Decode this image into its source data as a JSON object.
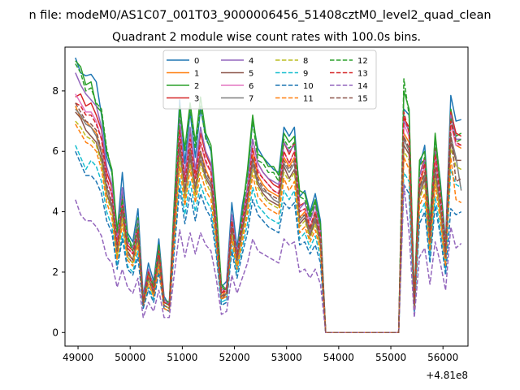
{
  "chart_data": {
    "type": "line",
    "suptitle": "n file: modeM0/AS1C07_001T03_9000006456_51408cztM0_level2_quad_clean",
    "title": "Quadrant 2 module wise count rates with 100.0s bins.",
    "xlabel": "",
    "ylabel": "",
    "offset_label": "+4.81e8",
    "xlim": [
      48750,
      56480
    ],
    "ylim": [
      -0.45,
      9.45
    ],
    "xticks": [
      49000,
      50000,
      51000,
      52000,
      53000,
      54000,
      55000,
      56000
    ],
    "yticks": [
      0,
      2,
      4,
      6,
      8
    ],
    "x": [
      48950,
      49050,
      49150,
      49250,
      49350,
      49450,
      49550,
      49650,
      49750,
      49850,
      49950,
      50050,
      50150,
      50250,
      50350,
      50450,
      50550,
      50650,
      50750,
      50850,
      50950,
      51050,
      51150,
      51250,
      51350,
      51450,
      51550,
      51650,
      51750,
      51850,
      51950,
      52050,
      52150,
      52250,
      52350,
      52450,
      52550,
      52650,
      52750,
      52850,
      52950,
      53050,
      53150,
      53250,
      53350,
      53450,
      53550,
      53650,
      53750,
      53850,
      53950,
      55150,
      55250,
      55350,
      55450,
      55550,
      55650,
      55750,
      55850,
      55950,
      56050,
      56150,
      56250,
      56350
    ],
    "gap": {
      "start": 53950,
      "end": 55050,
      "value": 0
    },
    "series": [
      {
        "name": "0",
        "color": "#1f77b4",
        "dash": false,
        "values": [
          9.1,
          8.6,
          8.5,
          8.55,
          8.3,
          7.2,
          5.8,
          5.3,
          3.3,
          5.3,
          3.3,
          3.0,
          4.1,
          1.2,
          2.3,
          1.7,
          3.1,
          1.2,
          0.9,
          4.5,
          7.7,
          5.6,
          7.3,
          5.8,
          7.4,
          6.5,
          6.0,
          4.0,
          1.5,
          1.7,
          4.3,
          2.8,
          4.2,
          5.2,
          7.0,
          6.1,
          5.8,
          5.6,
          5.4,
          5.3,
          6.8,
          6.5,
          6.8,
          4.5,
          4.7,
          4.0,
          4.6,
          3.7,
          0.0,
          0.0,
          0.0,
          0.0,
          7.4,
          7.2,
          1.0,
          5.5,
          6.2,
          3.6,
          6.5,
          5.0,
          3.0,
          7.85,
          7.0,
          7.05
        ]
      },
      {
        "name": "1",
        "color": "#ff7f0e",
        "dash": false,
        "values": [
          7.5,
          7.1,
          7.0,
          6.8,
          6.6,
          6.0,
          4.8,
          4.2,
          2.8,
          4.0,
          2.7,
          2.4,
          3.3,
          1.0,
          1.9,
          1.4,
          2.5,
          1.0,
          0.9,
          3.8,
          6.3,
          4.7,
          6.1,
          4.8,
          6.0,
          5.4,
          5.0,
          3.4,
          1.2,
          1.4,
          3.6,
          2.4,
          3.5,
          4.4,
          5.9,
          5.2,
          4.9,
          4.7,
          4.6,
          4.5,
          5.8,
          5.5,
          5.8,
          3.8,
          4.0,
          3.4,
          3.9,
          3.1,
          0.0,
          0.0,
          0.0,
          0.0,
          6.6,
          6.3,
          0.9,
          4.8,
          5.5,
          3.1,
          5.8,
          4.4,
          2.6,
          6.9,
          6.2,
          6.1
        ]
      },
      {
        "name": "2",
        "color": "#2ca02c",
        "dash": false,
        "values": [
          9.0,
          8.8,
          8.2,
          8.3,
          7.5,
          7.3,
          6.0,
          5.4,
          3.4,
          4.6,
          3.2,
          2.8,
          3.8,
          1.0,
          2.0,
          1.6,
          2.9,
          1.1,
          1.0,
          4.4,
          7.5,
          6.1,
          7.6,
          6.3,
          7.8,
          6.6,
          6.2,
          4.2,
          1.6,
          1.4,
          3.8,
          2.6,
          4.0,
          5.4,
          7.2,
          5.9,
          5.8,
          5.5,
          5.5,
          5.2,
          6.6,
          6.3,
          6.5,
          4.7,
          4.6,
          3.9,
          4.4,
          3.6,
          0.0,
          0.0,
          0.0,
          0.0,
          8.0,
          7.4,
          1.1,
          5.7,
          6.0,
          3.5,
          6.6,
          4.9,
          2.8,
          7.4,
          6.5,
          6.6
        ]
      },
      {
        "name": "3",
        "color": "#d62728",
        "dash": false,
        "values": [
          7.8,
          7.9,
          7.5,
          7.6,
          7.2,
          6.7,
          5.3,
          4.8,
          3.0,
          4.4,
          2.9,
          2.7,
          3.6,
          1.1,
          2.1,
          1.5,
          2.8,
          1.1,
          0.9,
          4.1,
          7.0,
          5.2,
          6.7,
          5.3,
          6.6,
          5.9,
          5.5,
          3.7,
          1.3,
          1.5,
          3.9,
          2.6,
          3.8,
          4.8,
          6.4,
          5.6,
          5.3,
          5.1,
          4.9,
          4.8,
          6.3,
          5.9,
          6.3,
          4.2,
          4.3,
          3.7,
          4.2,
          3.4,
          0.0,
          0.0,
          0.0,
          0.0,
          7.1,
          6.8,
          1.0,
          5.2,
          5.8,
          3.3,
          6.1,
          4.7,
          2.8,
          7.3,
          6.6,
          6.5
        ]
      },
      {
        "name": "4",
        "color": "#9467bd",
        "dash": false,
        "values": [
          8.6,
          8.2,
          7.9,
          7.7,
          7.5,
          6.8,
          5.5,
          4.9,
          3.1,
          4.8,
          3.0,
          2.8,
          3.7,
          1.1,
          2.1,
          1.5,
          2.8,
          1.1,
          0.9,
          4.1,
          7.1,
          5.2,
          6.8,
          5.4,
          6.8,
          6.0,
          5.6,
          3.7,
          1.4,
          1.5,
          3.9,
          2.6,
          3.9,
          4.8,
          6.4,
          5.6,
          5.3,
          5.1,
          5.0,
          4.9,
          6.3,
          6.0,
          6.2,
          4.1,
          4.3,
          3.7,
          4.2,
          3.4,
          0.0,
          0.0,
          0.0,
          0.0,
          7.0,
          6.7,
          1.0,
          5.2,
          5.7,
          3.4,
          6.0,
          4.6,
          2.8,
          7.2,
          6.4,
          6.4
        ]
      },
      {
        "name": "5",
        "color": "#8c564b",
        "dash": false,
        "values": [
          7.3,
          7.1,
          6.7,
          6.5,
          6.3,
          5.7,
          4.6,
          4.1,
          2.6,
          3.9,
          2.5,
          2.3,
          3.1,
          0.9,
          1.8,
          1.3,
          2.4,
          0.9,
          0.8,
          3.5,
          6.0,
          4.5,
          5.8,
          4.6,
          5.7,
          5.1,
          4.8,
          3.2,
          1.1,
          1.3,
          3.4,
          2.2,
          3.3,
          4.2,
          5.6,
          4.9,
          4.6,
          4.4,
          4.3,
          4.2,
          5.5,
          5.1,
          5.4,
          3.6,
          3.8,
          3.2,
          3.7,
          2.9,
          0.0,
          0.0,
          0.0,
          0.0,
          6.2,
          5.9,
          0.8,
          4.5,
          5.1,
          2.9,
          5.3,
          4.0,
          2.4,
          6.3,
          5.7,
          5.7
        ]
      },
      {
        "name": "6",
        "color": "#e377c2",
        "dash": false,
        "values": [
          7.9,
          7.6,
          7.3,
          7.3,
          7.0,
          6.4,
          5.1,
          4.5,
          2.9,
          4.3,
          2.8,
          2.6,
          3.5,
          1.0,
          2.0,
          1.4,
          2.7,
          1.0,
          0.9,
          3.9,
          6.6,
          5.0,
          6.4,
          5.1,
          6.3,
          5.6,
          5.3,
          3.5,
          1.3,
          1.4,
          3.7,
          2.5,
          3.6,
          4.6,
          6.1,
          5.4,
          5.1,
          4.9,
          4.7,
          4.6,
          6.0,
          5.6,
          6.0,
          4.0,
          4.1,
          3.5,
          4.0,
          3.2,
          0.0,
          0.0,
          0.0,
          0.0,
          6.9,
          6.5,
          0.9,
          5.0,
          5.5,
          3.2,
          5.8,
          4.4,
          2.7,
          6.9,
          6.2,
          6.2
        ]
      },
      {
        "name": "7",
        "color": "#7f7f7f",
        "dash": false,
        "values": [
          7.4,
          7.2,
          6.9,
          6.8,
          6.5,
          5.9,
          4.8,
          4.2,
          2.7,
          4.0,
          2.6,
          2.4,
          3.2,
          0.9,
          1.8,
          1.3,
          2.5,
          0.9,
          0.8,
          3.6,
          6.2,
          4.6,
          6.0,
          4.7,
          5.9,
          5.2,
          4.9,
          3.3,
          1.2,
          1.3,
          3.5,
          2.3,
          3.4,
          4.3,
          5.7,
          5.0,
          4.7,
          4.6,
          4.4,
          4.3,
          5.6,
          5.3,
          5.6,
          3.7,
          3.9,
          3.3,
          3.8,
          3.0,
          0.0,
          0.0,
          0.0,
          0.0,
          6.4,
          6.0,
          0.9,
          4.7,
          5.2,
          3.0,
          5.4,
          4.1,
          2.5,
          6.5,
          5.8,
          4.7
        ]
      },
      {
        "name": "8",
        "color": "#bcbd22",
        "dash": true,
        "values": [
          7.0,
          6.8,
          6.5,
          6.4,
          6.2,
          5.6,
          4.5,
          4.0,
          2.5,
          3.8,
          2.5,
          2.3,
          3.0,
          0.9,
          1.7,
          1.2,
          2.3,
          0.9,
          0.8,
          3.4,
          5.8,
          4.4,
          5.6,
          4.5,
          5.6,
          5.0,
          4.6,
          3.1,
          1.1,
          1.2,
          3.3,
          2.2,
          3.2,
          4.1,
          5.4,
          4.8,
          4.5,
          4.3,
          4.2,
          4.1,
          5.3,
          5.0,
          5.3,
          3.5,
          3.7,
          3.1,
          3.6,
          2.8,
          0.0,
          0.0,
          0.0,
          0.0,
          6.0,
          5.7,
          0.8,
          4.4,
          4.9,
          2.8,
          5.1,
          3.9,
          2.3,
          6.1,
          5.5,
          5.4
        ]
      },
      {
        "name": "9",
        "color": "#17becf",
        "dash": true,
        "values": [
          6.2,
          5.8,
          5.4,
          5.7,
          5.5,
          5.0,
          4.0,
          3.5,
          2.2,
          3.3,
          2.2,
          2.0,
          2.7,
          0.8,
          1.5,
          1.1,
          2.1,
          0.8,
          0.7,
          3.0,
          5.1,
          3.9,
          5.0,
          4.0,
          4.9,
          4.4,
          4.1,
          2.8,
          1.0,
          1.1,
          2.9,
          2.0,
          2.8,
          3.6,
          4.8,
          4.2,
          4.0,
          3.8,
          3.7,
          3.6,
          4.7,
          4.4,
          4.7,
          3.1,
          3.3,
          2.8,
          3.2,
          2.5,
          0.0,
          0.0,
          0.0,
          0.0,
          5.3,
          5.0,
          0.7,
          3.9,
          4.3,
          2.5,
          4.5,
          3.4,
          2.1,
          5.4,
          4.9,
          4.8
        ]
      },
      {
        "name": "10",
        "color": "#1f77b4",
        "dash": true,
        "values": [
          6.0,
          5.6,
          5.2,
          5.2,
          5.0,
          4.6,
          3.7,
          3.3,
          2.1,
          3.1,
          2.1,
          1.9,
          2.5,
          0.8,
          1.4,
          1.0,
          2.0,
          0.8,
          0.7,
          2.8,
          4.8,
          3.6,
          4.6,
          3.7,
          4.6,
          4.1,
          3.8,
          2.6,
          0.9,
          1.0,
          2.7,
          1.8,
          2.6,
          3.3,
          4.4,
          3.9,
          3.7,
          3.5,
          3.4,
          3.3,
          4.3,
          4.1,
          4.3,
          2.9,
          3.0,
          2.6,
          2.9,
          2.3,
          0.0,
          0.0,
          0.0,
          0.0,
          4.9,
          4.6,
          0.7,
          3.6,
          4.0,
          2.3,
          4.2,
          3.2,
          1.9,
          4.1,
          3.9,
          4.0
        ]
      },
      {
        "name": "11",
        "color": "#ff7f0e",
        "dash": true,
        "values": [
          6.9,
          6.6,
          6.3,
          6.2,
          6.0,
          5.4,
          4.3,
          3.8,
          2.4,
          3.6,
          2.4,
          2.2,
          2.9,
          0.9,
          1.6,
          1.2,
          2.2,
          0.8,
          0.7,
          3.2,
          5.5,
          4.2,
          5.4,
          4.3,
          5.3,
          4.7,
          4.4,
          3.0,
          1.1,
          1.2,
          3.1,
          2.1,
          3.0,
          3.9,
          5.2,
          4.5,
          4.3,
          4.1,
          4.0,
          3.9,
          5.1,
          4.7,
          5.0,
          3.3,
          3.5,
          3.0,
          3.4,
          2.7,
          0.0,
          0.0,
          0.0,
          0.0,
          5.8,
          5.4,
          0.8,
          4.2,
          4.6,
          2.7,
          4.9,
          3.7,
          2.2,
          5.8,
          4.4,
          4.3
        ]
      },
      {
        "name": "12",
        "color": "#2ca02c",
        "dash": true,
        "values": [
          8.9,
          8.6,
          8.0,
          8.1,
          7.6,
          7.4,
          6.1,
          5.3,
          3.3,
          4.4,
          3.1,
          2.7,
          3.6,
          1.0,
          2.0,
          1.5,
          2.8,
          1.0,
          0.9,
          4.2,
          7.3,
          6.0,
          7.4,
          6.1,
          7.5,
          6.4,
          6.1,
          4.1,
          1.5,
          1.4,
          3.7,
          2.5,
          3.9,
          5.2,
          7.0,
          5.7,
          5.6,
          5.3,
          5.3,
          5.0,
          6.4,
          6.1,
          6.3,
          4.5,
          4.4,
          3.8,
          4.3,
          3.5,
          0.0,
          0.0,
          0.0,
          0.0,
          8.4,
          7.2,
          1.0,
          5.5,
          5.8,
          3.4,
          6.4,
          4.8,
          2.7,
          7.1,
          6.3,
          6.4
        ]
      },
      {
        "name": "13",
        "color": "#d62728",
        "dash": true,
        "values": [
          7.6,
          7.5,
          7.2,
          7.2,
          6.9,
          6.4,
          5.1,
          4.6,
          2.9,
          4.2,
          2.8,
          2.6,
          3.4,
          1.0,
          2.0,
          1.4,
          2.7,
          1.0,
          0.9,
          3.9,
          6.7,
          5.0,
          6.4,
          5.1,
          6.3,
          5.7,
          5.3,
          3.5,
          1.3,
          1.4,
          3.7,
          2.5,
          3.6,
          4.6,
          6.1,
          5.3,
          5.1,
          4.9,
          4.7,
          4.6,
          6.0,
          5.6,
          6.0,
          4.0,
          4.1,
          3.5,
          4.0,
          3.2,
          0.0,
          0.0,
          0.0,
          0.0,
          7.3,
          6.6,
          1.0,
          5.0,
          5.6,
          3.2,
          5.9,
          4.5,
          2.7,
          7.0,
          6.3,
          6.2
        ]
      },
      {
        "name": "14",
        "color": "#9467bd",
        "dash": true,
        "values": [
          4.4,
          3.9,
          3.7,
          3.7,
          3.5,
          3.2,
          2.5,
          2.3,
          1.5,
          2.1,
          1.5,
          1.3,
          1.8,
          0.5,
          1.0,
          0.7,
          1.4,
          0.5,
          0.5,
          2.0,
          3.4,
          2.5,
          3.3,
          2.6,
          3.3,
          2.9,
          2.7,
          1.8,
          0.6,
          0.7,
          1.9,
          1.3,
          1.8,
          2.3,
          3.1,
          2.7,
          2.6,
          2.5,
          2.4,
          2.3,
          3.1,
          2.9,
          3.0,
          2.0,
          2.1,
          1.8,
          2.1,
          1.6,
          0.0,
          0.0,
          0.0,
          0.0,
          4.9,
          3.3,
          0.5,
          2.5,
          2.8,
          1.6,
          3.0,
          2.3,
          1.4,
          3.5,
          2.8,
          2.95
        ]
      },
      {
        "name": "15",
        "color": "#8c564b",
        "dash": true,
        "values": [
          7.6,
          7.3,
          7.0,
          6.9,
          6.7,
          6.0,
          4.9,
          4.3,
          2.7,
          4.1,
          2.7,
          2.4,
          3.3,
          0.9,
          1.8,
          1.3,
          2.5,
          0.9,
          0.8,
          3.7,
          6.3,
          4.7,
          6.1,
          4.8,
          6.0,
          5.3,
          5.0,
          3.4,
          1.2,
          1.3,
          3.5,
          2.4,
          3.4,
          4.4,
          5.8,
          5.1,
          4.8,
          4.6,
          4.5,
          4.4,
          5.7,
          5.4,
          5.7,
          3.8,
          3.9,
          3.4,
          3.9,
          3.0,
          0.0,
          0.0,
          0.0,
          0.0,
          6.5,
          6.1,
          0.9,
          4.8,
          5.3,
          3.0,
          5.5,
          4.2,
          2.5,
          6.6,
          5.0,
          5.1
        ]
      }
    ],
    "legend": {
      "placement": "top-center",
      "columns": 4
    },
    "grid": false
  }
}
